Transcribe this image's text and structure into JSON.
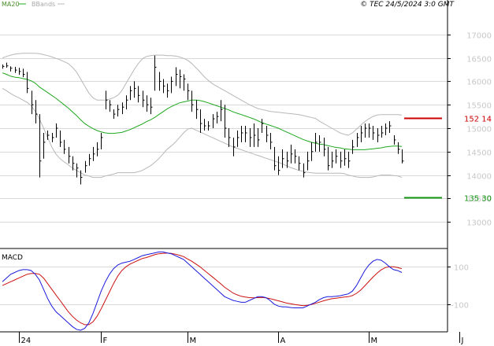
{
  "header": {
    "indicator": "MA20",
    "bands": "BBands",
    "copyright": "© TEC 24/5/2024 3:0 GMT"
  },
  "colors": {
    "price": "#000000",
    "ma": "#1fa81f",
    "bands": "#b8b8b8",
    "grid": "#d9d9d9",
    "axis": "#000000",
    "resistance": "#cc0000",
    "support": "#139613",
    "macd": "#1a1add",
    "signal": "#cc1111"
  },
  "chart_data": [
    {
      "type": "line",
      "panel": "price",
      "ylim": [
        12500,
        17400
      ],
      "yticks": [
        13000,
        13500,
        14000,
        14500,
        15000,
        15500,
        16000,
        16500,
        17000
      ],
      "ytick_labels": [
        "13000",
        "13500",
        "14000",
        "14500",
        "15000",
        "15500",
        "16000",
        "16500",
        "17000"
      ],
      "x_labels": [
        {
          "label": "24",
          "index": 4
        },
        {
          "label": "F",
          "index": 24
        },
        {
          "label": "M",
          "index": 45
        },
        {
          "label": "A",
          "index": 67
        },
        {
          "label": "M",
          "index": 89
        },
        {
          "label": "J",
          "index": 111
        }
      ],
      "bars": [
        [
          16360,
          16270,
          16320
        ],
        [
          16400,
          16290,
          16330
        ],
        [
          16320,
          16210,
          16280
        ],
        [
          16310,
          16180,
          16240
        ],
        [
          16290,
          16140,
          16210
        ],
        [
          16270,
          16090,
          16150
        ],
        [
          16200,
          15750,
          15850
        ],
        [
          15800,
          15300,
          15500
        ],
        [
          15600,
          15100,
          15300
        ],
        [
          15300,
          13950,
          14300
        ],
        [
          14900,
          14350,
          14700
        ],
        [
          14950,
          14750,
          14850
        ],
        [
          14900,
          14700,
          14800
        ],
        [
          15100,
          14800,
          15000
        ],
        [
          14950,
          14600,
          14700
        ],
        [
          14750,
          14450,
          14550
        ],
        [
          14600,
          14250,
          14400
        ],
        [
          14400,
          14100,
          14250
        ],
        [
          14250,
          13950,
          14150
        ],
        [
          14100,
          13800,
          13950
        ],
        [
          14300,
          14050,
          14200
        ],
        [
          14450,
          14200,
          14350
        ],
        [
          14600,
          14300,
          14450
        ],
        [
          14700,
          14400,
          14550
        ],
        [
          14900,
          14550,
          14800
        ],
        [
          15800,
          15400,
          15600
        ],
        [
          15600,
          15350,
          15500
        ],
        [
          15400,
          15200,
          15300
        ],
        [
          15500,
          15250,
          15400
        ],
        [
          15550,
          15300,
          15450
        ],
        [
          15700,
          15400,
          15600
        ],
        [
          15900,
          15600,
          15800
        ],
        [
          16000,
          15650,
          15850
        ],
        [
          15900,
          15550,
          15700
        ],
        [
          15800,
          15450,
          15600
        ],
        [
          15700,
          15350,
          15500
        ],
        [
          15650,
          15300,
          15450
        ],
        [
          16550,
          15800,
          16300
        ],
        [
          16200,
          15800,
          16000
        ],
        [
          16050,
          15750,
          15900
        ],
        [
          15950,
          15650,
          15800
        ],
        [
          16100,
          15750,
          16000
        ],
        [
          16300,
          15900,
          16150
        ],
        [
          16250,
          15850,
          16100
        ],
        [
          16150,
          15800,
          16050
        ],
        [
          15950,
          15600,
          15800
        ],
        [
          15800,
          15350,
          15500
        ],
        [
          15600,
          15200,
          15400
        ],
        [
          15400,
          14900,
          15100
        ],
        [
          15200,
          14950,
          15050
        ],
        [
          15150,
          14950,
          15050
        ],
        [
          15300,
          15000,
          15200
        ],
        [
          15350,
          15100,
          15250
        ],
        [
          15600,
          15150,
          15400
        ],
        [
          15500,
          14800,
          15000
        ],
        [
          15000,
          14600,
          14800
        ],
        [
          14800,
          14400,
          14600
        ],
        [
          14950,
          14600,
          14800
        ],
        [
          15050,
          14700,
          14900
        ],
        [
          15050,
          14700,
          14900
        ],
        [
          15000,
          14600,
          14800
        ],
        [
          15100,
          14600,
          14850
        ],
        [
          15000,
          14600,
          14750
        ],
        [
          15200,
          14900,
          15100
        ],
        [
          15050,
          14700,
          14850
        ],
        [
          14900,
          14550,
          14700
        ],
        [
          14600,
          14100,
          14200
        ],
        [
          14400,
          14000,
          14100
        ],
        [
          14550,
          14150,
          14350
        ],
        [
          14500,
          14150,
          14300
        ],
        [
          14650,
          14250,
          14450
        ],
        [
          14550,
          14250,
          14400
        ],
        [
          14400,
          14100,
          14250
        ],
        [
          14250,
          13950,
          14050
        ],
        [
          14500,
          14100,
          14300
        ],
        [
          14700,
          14300,
          14500
        ],
        [
          14900,
          14500,
          14700
        ],
        [
          14850,
          14500,
          14700
        ],
        [
          14800,
          14400,
          14550
        ],
        [
          14600,
          14100,
          14200
        ],
        [
          14500,
          14150,
          14300
        ],
        [
          14550,
          14250,
          14400
        ],
        [
          14500,
          14150,
          14300
        ],
        [
          14550,
          14200,
          14350
        ],
        [
          14500,
          14150,
          14300
        ],
        [
          14750,
          14450,
          14600
        ],
        [
          14900,
          14600,
          14800
        ],
        [
          15050,
          14700,
          14900
        ],
        [
          15100,
          14800,
          15000
        ],
        [
          15100,
          14800,
          15000
        ],
        [
          15050,
          14750,
          14900
        ],
        [
          15000,
          14700,
          14850
        ],
        [
          15050,
          14800,
          14900
        ],
        [
          15100,
          14850,
          15000
        ],
        [
          15150,
          14900,
          15050
        ],
        [
          14850,
          14650,
          14750
        ],
        [
          14700,
          14450,
          14550
        ],
        [
          14550,
          14250,
          14300
        ]
      ],
      "series": [
        {
          "name": "MA20",
          "values": [
            16180,
            16150,
            16110,
            16090,
            16080,
            16060,
            16040,
            16010,
            15960,
            15880,
            15820,
            15760,
            15700,
            15640,
            15570,
            15500,
            15430,
            15350,
            15270,
            15180,
            15100,
            15040,
            14990,
            14950,
            14920,
            14900,
            14890,
            14890,
            14900,
            14910,
            14940,
            14970,
            15010,
            15050,
            15090,
            15140,
            15180,
            15230,
            15290,
            15350,
            15410,
            15460,
            15500,
            15540,
            15560,
            15580,
            15600,
            15600,
            15590,
            15570,
            15540,
            15510,
            15480,
            15450,
            15420,
            15390,
            15350,
            15320,
            15290,
            15260,
            15230,
            15200,
            15160,
            15120,
            15090,
            15060,
            15030,
            15000,
            14960,
            14920,
            14880,
            14840,
            14800,
            14760,
            14730,
            14700,
            14680,
            14660,
            14650,
            14630,
            14610,
            14590,
            14580,
            14560,
            14550,
            14540,
            14540,
            14540,
            14540,
            14550,
            14560,
            14570,
            14580,
            14600,
            14610,
            14620,
            14620,
            14610
          ]
        },
        {
          "name": "BBands upper",
          "values": [
            16500,
            16530,
            16560,
            16580,
            16590,
            16600,
            16600,
            16600,
            16600,
            16590,
            16570,
            16550,
            16520,
            16490,
            16460,
            16420,
            16380,
            16300,
            16200,
            16050,
            15900,
            15750,
            15650,
            15600,
            15600,
            15600,
            15620,
            15650,
            15700,
            15800,
            15950,
            16100,
            16250,
            16380,
            16480,
            16530,
            16550,
            16560,
            16560,
            16560,
            16550,
            16550,
            16540,
            16520,
            16490,
            16450,
            16380,
            16290,
            16200,
            16100,
            16020,
            15950,
            15900,
            15850,
            15800,
            15750,
            15700,
            15650,
            15600,
            15550,
            15500,
            15460,
            15420,
            15400,
            15380,
            15360,
            15350,
            15340,
            15330,
            15320,
            15310,
            15300,
            15290,
            15270,
            15250,
            15230,
            15210,
            15150,
            15100,
            15050,
            15000,
            14950,
            14900,
            14870,
            14850,
            14900,
            14980,
            15060,
            15140,
            15200,
            15250,
            15280,
            15290,
            15290,
            15290,
            15290,
            15290,
            15280
          ]
        },
        {
          "name": "BBands lower",
          "values": [
            15850,
            15800,
            15740,
            15690,
            15650,
            15600,
            15550,
            15480,
            15360,
            15200,
            15000,
            14800,
            14600,
            14450,
            14350,
            14280,
            14220,
            14150,
            14100,
            14050,
            14000,
            13980,
            13950,
            13950,
            13950,
            13980,
            14000,
            14020,
            14050,
            14050,
            14050,
            14050,
            14050,
            14070,
            14100,
            14150,
            14200,
            14270,
            14350,
            14450,
            14550,
            14620,
            14700,
            14800,
            14900,
            14980,
            15000,
            14960,
            14920,
            14880,
            14840,
            14800,
            14760,
            14720,
            14680,
            14640,
            14600,
            14570,
            14540,
            14510,
            14480,
            14450,
            14420,
            14390,
            14360,
            14330,
            14300,
            14270,
            14240,
            14200,
            14160,
            14130,
            14100,
            14080,
            14060,
            14050,
            14040,
            14040,
            14040,
            14040,
            14040,
            14040,
            14040,
            14030,
            14000,
            13980,
            13960,
            13950,
            13950,
            13950,
            13960,
            13980,
            14000,
            14000,
            14000,
            13990,
            13980,
            13950
          ]
        }
      ],
      "levels": [
        {
          "name": "resistance",
          "value": 15214,
          "label": "152 14"
        },
        {
          "name": "support",
          "value": 13530,
          "label": "135 30"
        }
      ]
    },
    {
      "type": "line",
      "panel": "macd",
      "title": "MACD",
      "ylim": [
        -240,
        190
      ],
      "yticks": [
        100,
        -100
      ],
      "ytick_labels": [
        "100",
        "-100"
      ],
      "series": [
        {
          "name": "MACD",
          "values": [
            20,
            40,
            60,
            70,
            80,
            85,
            85,
            80,
            60,
            30,
            -20,
            -70,
            -110,
            -140,
            -160,
            -180,
            -200,
            -220,
            -235,
            -240,
            -230,
            -200,
            -150,
            -90,
            -30,
            20,
            60,
            90,
            110,
            120,
            125,
            130,
            140,
            150,
            160,
            165,
            170,
            175,
            180,
            180,
            175,
            170,
            160,
            150,
            140,
            120,
            100,
            80,
            60,
            40,
            20,
            0,
            -20,
            -40,
            -60,
            -70,
            -80,
            -85,
            -90,
            -90,
            -80,
            -70,
            -60,
            -60,
            -65,
            -80,
            -100,
            -110,
            -115,
            -115,
            -118,
            -120,
            -120,
            -120,
            -110,
            -100,
            -90,
            -75,
            -65,
            -60,
            -60,
            -58,
            -55,
            -50,
            -45,
            -30,
            0,
            40,
            80,
            110,
            130,
            140,
            135,
            120,
            100,
            85,
            80,
            70
          ]
        },
        {
          "name": "Signal",
          "values": [
            0,
            10,
            20,
            30,
            40,
            50,
            60,
            65,
            65,
            60,
            40,
            10,
            -20,
            -50,
            -80,
            -110,
            -140,
            -165,
            -185,
            -200,
            -210,
            -210,
            -195,
            -165,
            -125,
            -80,
            -35,
            10,
            50,
            80,
            100,
            115,
            125,
            135,
            145,
            150,
            158,
            165,
            170,
            172,
            174,
            172,
            168,
            162,
            155,
            142,
            130,
            115,
            100,
            82,
            64,
            46,
            28,
            10,
            -10,
            -25,
            -40,
            -50,
            -58,
            -62,
            -65,
            -66,
            -65,
            -64,
            -66,
            -70,
            -76,
            -82,
            -88,
            -94,
            -98,
            -102,
            -105,
            -108,
            -106,
            -102,
            -96,
            -89,
            -82,
            -76,
            -71,
            -68,
            -65,
            -62,
            -60,
            -54,
            -42,
            -25,
            -2,
            22,
            45,
            66,
            84,
            96,
            100,
            100,
            96,
            90
          ]
        }
      ]
    }
  ]
}
